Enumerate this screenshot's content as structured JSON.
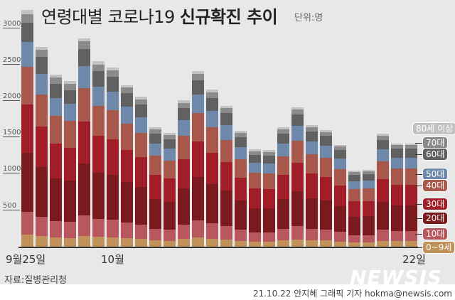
{
  "header": {
    "title_light": "연령대별 코로나19 ",
    "title_bold": "신규확진 추이",
    "unit": "단위:명"
  },
  "axis": {
    "y_ticks": [
      "3000",
      "2500",
      "2000",
      "1500",
      "1000",
      "500"
    ],
    "x_labels": [
      "9월25일",
      "10월",
      "22일"
    ]
  },
  "footer": {
    "source": "자료:질병관리청",
    "credit": "21.10.22 안지혜 그래픽 기자 hokma@newsis.com",
    "logo": "NEWSIS"
  },
  "legend": [
    {
      "label": "80세 이상",
      "color": "#c2c2c2"
    },
    {
      "label": "70대",
      "color": "#8a8a8a"
    },
    {
      "label": "60대",
      "color": "#616161"
    },
    {
      "label": "50대",
      "color": "#6e88aa"
    },
    {
      "label": "40대",
      "color": "#a8574b"
    },
    {
      "label": "30대",
      "color": "#a11e28"
    },
    {
      "label": "20대",
      "color": "#7a1a1e"
    },
    {
      "label": "10대",
      "color": "#b8575e"
    },
    {
      "label": "0~9세",
      "color": "#c09158"
    }
  ],
  "chart_data": {
    "type": "bar",
    "stacked": true,
    "title": "연령대별 코로나19 신규확진 추이",
    "unit": "명",
    "xlabel": "",
    "ylabel": "",
    "ylim": [
      0,
      3300
    ],
    "y_ticks": [
      500,
      1000,
      1500,
      2000,
      2500,
      3000
    ],
    "x_tick_labels": {
      "0": "9월25일",
      "6": "10월",
      "27": "22일"
    },
    "categories": [
      "9/25",
      "9/26",
      "9/27",
      "9/28",
      "9/29",
      "9/30",
      "10/1",
      "10/2",
      "10/3",
      "10/4",
      "10/5",
      "10/6",
      "10/7",
      "10/8",
      "10/9",
      "10/10",
      "10/11",
      "10/12",
      "10/13",
      "10/14",
      "10/15",
      "10/16",
      "10/17",
      "10/18",
      "10/19",
      "10/20",
      "10/21",
      "10/22"
    ],
    "totals": [
      3255,
      2755,
      2365,
      2275,
      2870,
      2550,
      2470,
      2225,
      2060,
      1645,
      1560,
      2010,
      2420,
      2160,
      1935,
      1590,
      1335,
      1325,
      1640,
      1920,
      1675,
      1605,
      1400,
      1040,
      1050,
      1550,
      1420,
      1420
    ],
    "series_order_bottom_to_top": [
      "0~9세",
      "10대",
      "20대",
      "30대",
      "40대",
      "50대",
      "60대",
      "70대",
      "80세 이상"
    ],
    "series_share": [
      0.052,
      0.097,
      0.25,
      0.202,
      0.16,
      0.105,
      0.084,
      0.036,
      0.014
    ],
    "grid": false,
    "legend_position": "right"
  }
}
